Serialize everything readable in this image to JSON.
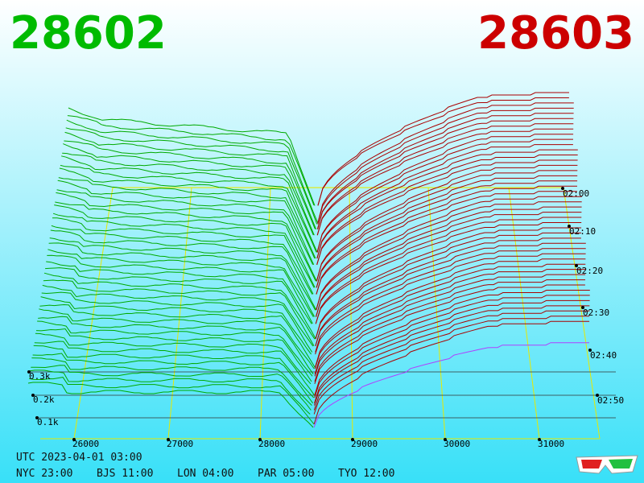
{
  "header": {
    "bid": "28602",
    "ask": "28603"
  },
  "price_axis": [
    "26000",
    "27000",
    "28000",
    "29000",
    "30000",
    "31000"
  ],
  "depth_axis": [
    "0.3k",
    "0.2k",
    "0.1k"
  ],
  "time_axis": [
    "02:00",
    "02:10",
    "02:20",
    "02:30",
    "02:40",
    "02:50"
  ],
  "clocks": {
    "utc": "UTC 2023-04-01 03:00",
    "zones": [
      "NYC 23:00",
      "BJS 11:00",
      "LON 04:00",
      "PAR 05:00",
      "TYO 12:00"
    ]
  }
}
